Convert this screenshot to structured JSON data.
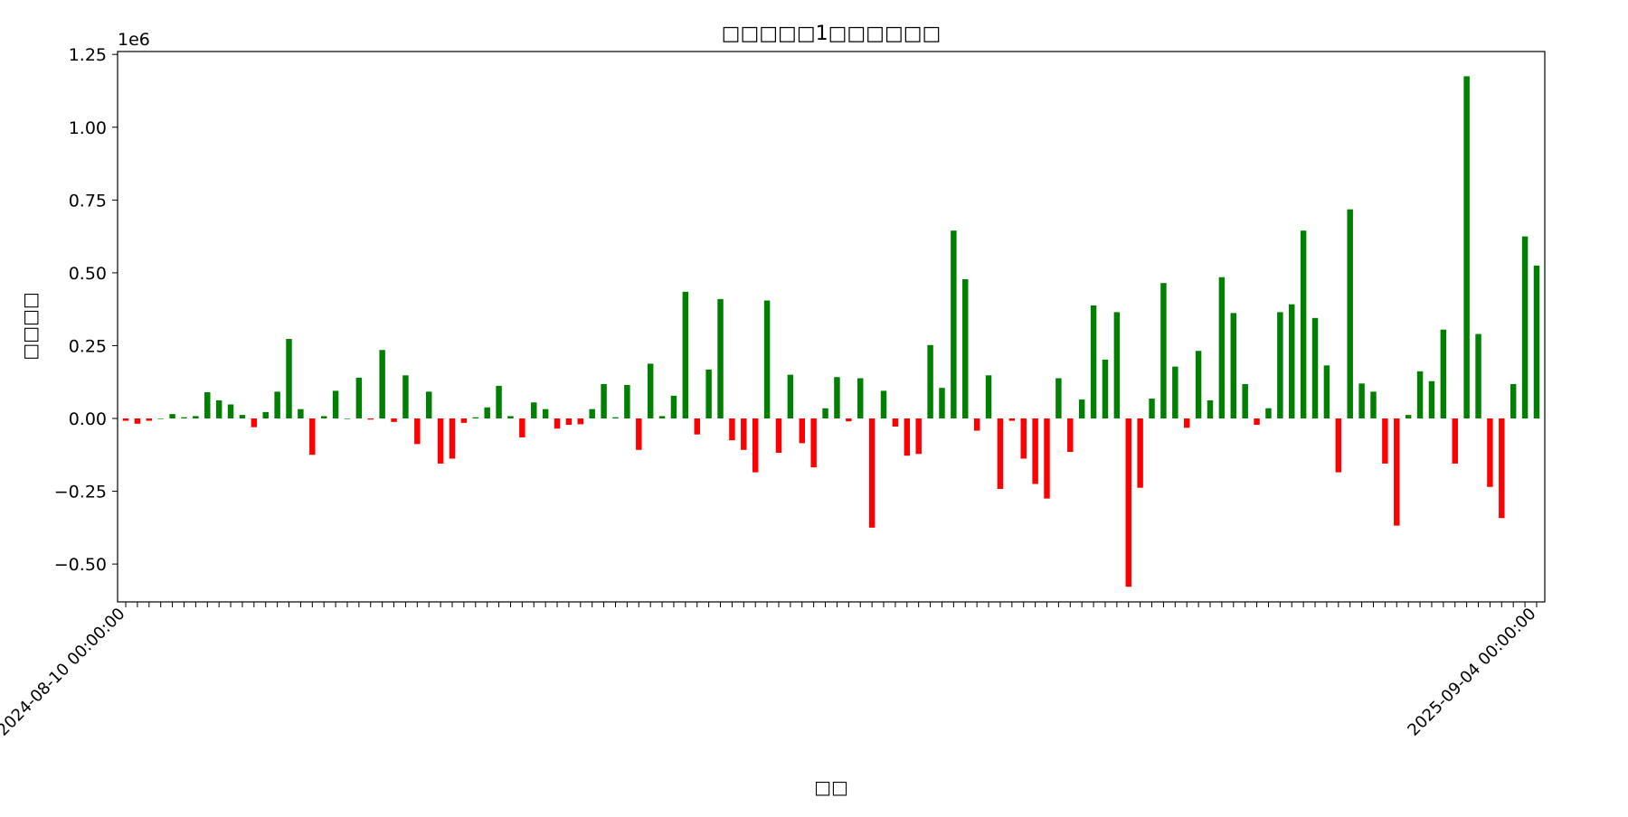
{
  "colors": {
    "positive": "#008000",
    "negative": "#ff0000",
    "axis": "#000000"
  },
  "chart_data": {
    "type": "bar",
    "title": "□□□□□1□□□□□□",
    "xlabel": "□□",
    "ylabel": "□□□□",
    "y_scale_label": "1e6",
    "ylim": [
      -0.63,
      1.26
    ],
    "yticks": [
      -0.5,
      -0.25,
      0.0,
      0.25,
      0.5,
      0.75,
      1.0,
      1.25
    ],
    "ytick_labels": [
      "−0.50",
      "−0.25",
      "0.00",
      "0.25",
      "0.50",
      "0.75",
      "1.00",
      "1.25"
    ],
    "grid": false,
    "legend": "none",
    "first_category_label": "2024-08-10 00:00:00",
    "last_category_label": "2025-09-04 00:00:00",
    "value_units": "1e6",
    "values": [
      -0.008,
      -0.018,
      -0.008,
      0.0,
      0.015,
      0.004,
      0.008,
      0.09,
      0.062,
      0.048,
      0.012,
      -0.03,
      0.022,
      0.092,
      0.273,
      0.032,
      -0.125,
      0.008,
      0.095,
      0.0,
      0.14,
      -0.004,
      0.235,
      -0.012,
      0.148,
      -0.088,
      0.092,
      -0.155,
      -0.138,
      -0.015,
      0.004,
      0.038,
      0.112,
      0.008,
      -0.065,
      0.055,
      0.032,
      -0.035,
      -0.022,
      -0.02,
      0.032,
      0.118,
      0.004,
      0.115,
      -0.108,
      0.188,
      0.008,
      0.078,
      0.435,
      -0.055,
      0.168,
      0.41,
      -0.075,
      -0.108,
      -0.185,
      0.405,
      -0.118,
      0.15,
      -0.085,
      -0.168,
      0.035,
      0.142,
      -0.01,
      0.138,
      -0.375,
      0.095,
      -0.028,
      -0.128,
      -0.122,
      0.252,
      0.105,
      0.645,
      0.478,
      -0.042,
      0.148,
      -0.242,
      -0.008,
      -0.138,
      -0.225,
      -0.275,
      0.138,
      -0.115,
      0.065,
      0.388,
      0.202,
      0.365,
      -0.578,
      -0.238,
      0.068,
      0.465,
      0.178,
      -0.032,
      0.232,
      0.062,
      0.485,
      0.362,
      0.118,
      -0.022,
      0.035,
      0.365,
      0.392,
      0.645,
      0.345,
      0.182,
      -0.185,
      0.718,
      0.12,
      0.092,
      -0.155,
      -0.368,
      0.012,
      0.162,
      0.128,
      0.305,
      -0.155,
      1.175,
      0.29,
      -0.235,
      -0.342,
      0.118,
      0.625,
      0.525
    ]
  }
}
